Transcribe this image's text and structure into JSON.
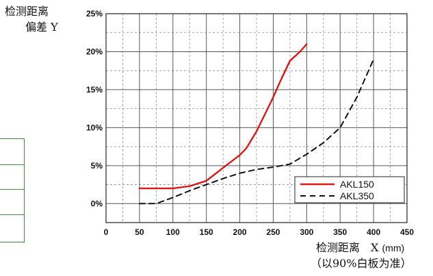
{
  "chart_data": {
    "type": "line",
    "x_ticks": [
      0,
      50,
      100,
      150,
      200,
      250,
      300,
      350,
      400,
      450
    ],
    "y_ticks": [
      "0%",
      "5%",
      "10%",
      "15%",
      "20%",
      "25%"
    ],
    "xlim": [
      0,
      450
    ],
    "ylim": [
      -2.5,
      25
    ],
    "grid": true,
    "legend_position": "bottom-right",
    "y_title_line1": "检测距离",
    "y_title_line2": "偏差 Y",
    "x_title": "检测距离　X",
    "x_unit": "(mm)",
    "x_note": "（以90%白板为准）",
    "series": [
      {
        "name": "AKL150",
        "color": "#e31414",
        "style": "solid",
        "x": [
          50,
          75,
          100,
          125,
          150,
          175,
          200,
          210,
          225,
          240,
          250,
          260,
          275,
          290,
          300
        ],
        "y": [
          2.0,
          2.0,
          2.0,
          2.3,
          3.0,
          4.7,
          6.4,
          7.3,
          9.5,
          12.2,
          14.0,
          16.0,
          18.8,
          20.0,
          21.0
        ]
      },
      {
        "name": "AKL350",
        "color": "#111111",
        "style": "dashed",
        "x": [
          50,
          75,
          100,
          125,
          150,
          175,
          200,
          225,
          250,
          275,
          300,
          325,
          350,
          375,
          400
        ],
        "y": [
          0.0,
          0.0,
          0.8,
          1.7,
          2.5,
          3.3,
          4.0,
          4.5,
          4.8,
          5.2,
          6.5,
          8.0,
          10.0,
          14.0,
          19.0
        ]
      }
    ]
  }
}
